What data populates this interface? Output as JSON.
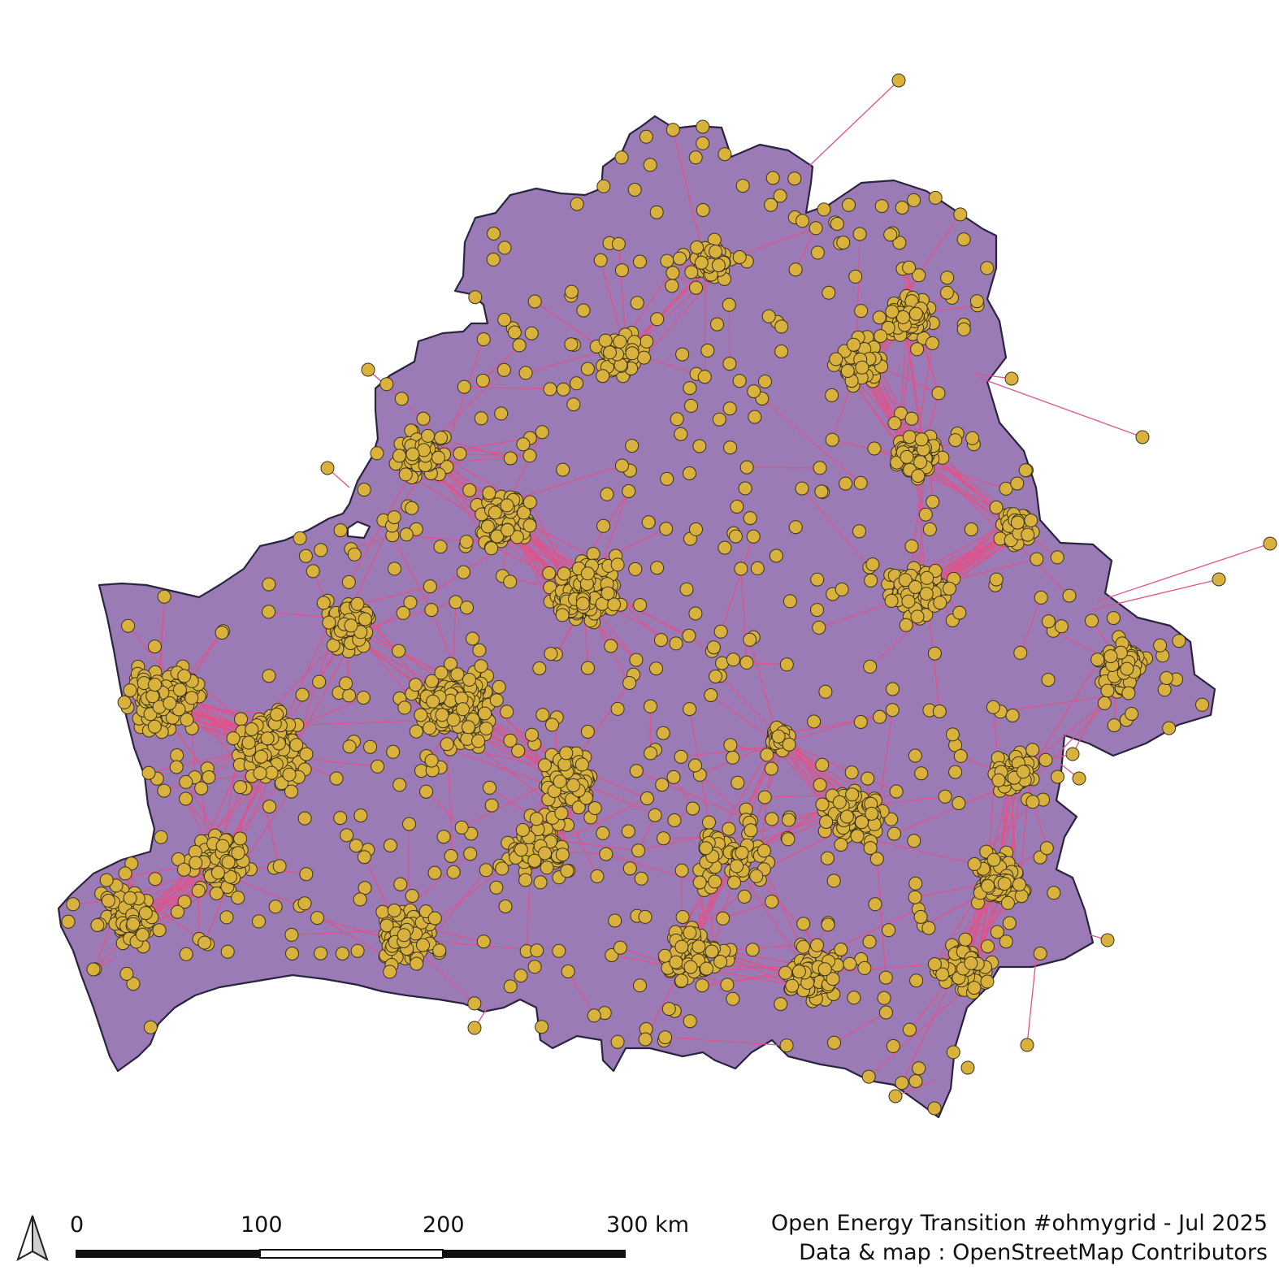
{
  "map": {
    "colors": {
      "country_fill": "#9a7bb5",
      "country_border": "#2a2440",
      "line": "#e0538a",
      "substation_fill": "#d8b23c",
      "substation_border": "#3a3220"
    },
    "layers": [
      "country-outline",
      "power-lines",
      "substations"
    ],
    "north_arrow": "north-arrow-icon"
  },
  "scalebar": {
    "labels": [
      "0",
      "100",
      "200",
      "300 km"
    ]
  },
  "credits": {
    "line1": "Open Energy Transition #ohmygrid - Jul 2025",
    "line2": "Data & map : OpenStreetMap Contributors"
  }
}
